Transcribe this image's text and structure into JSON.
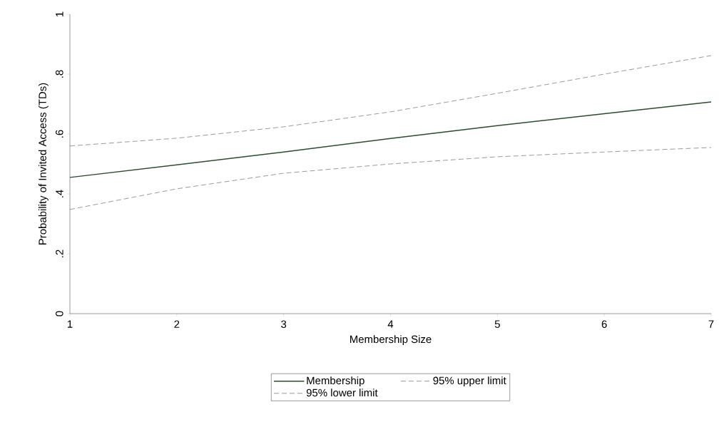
{
  "chart_data": {
    "type": "line",
    "xlabel": "Membership Size",
    "ylabel": "Probability of Invited Access (TDs)",
    "x": [
      1,
      2,
      3,
      4,
      5,
      6,
      7
    ],
    "series": [
      {
        "name": "Membership",
        "color": "#2e4a30",
        "line_style": "solid",
        "values": [
          0.455,
          0.497,
          0.54,
          0.585,
          0.628,
          0.668,
          0.707
        ]
      },
      {
        "name": "95% upper limit",
        "color": "#555555",
        "line_style": "dashed",
        "values": [
          0.56,
          0.586,
          0.624,
          0.674,
          0.736,
          0.8,
          0.862
        ]
      },
      {
        "name": "95% lower limit",
        "color": "#555555",
        "line_style": "dashed",
        "values": [
          0.348,
          0.417,
          0.469,
          0.5,
          0.524,
          0.54,
          0.555
        ]
      }
    ],
    "xlim": [
      1,
      7
    ],
    "ylim": [
      0,
      1
    ],
    "xticks": [
      1,
      2,
      3,
      4,
      5,
      6,
      7
    ],
    "yticks": [
      0,
      {
        "value": 0.2,
        "label": ".2"
      },
      {
        "value": 0.4,
        "label": ".4"
      },
      {
        "value": 0.6,
        "label": ".6"
      },
      {
        "value": 0.8,
        "label": ".8"
      },
      1
    ],
    "grid": false,
    "legend": "bottom",
    "marker": "none"
  }
}
